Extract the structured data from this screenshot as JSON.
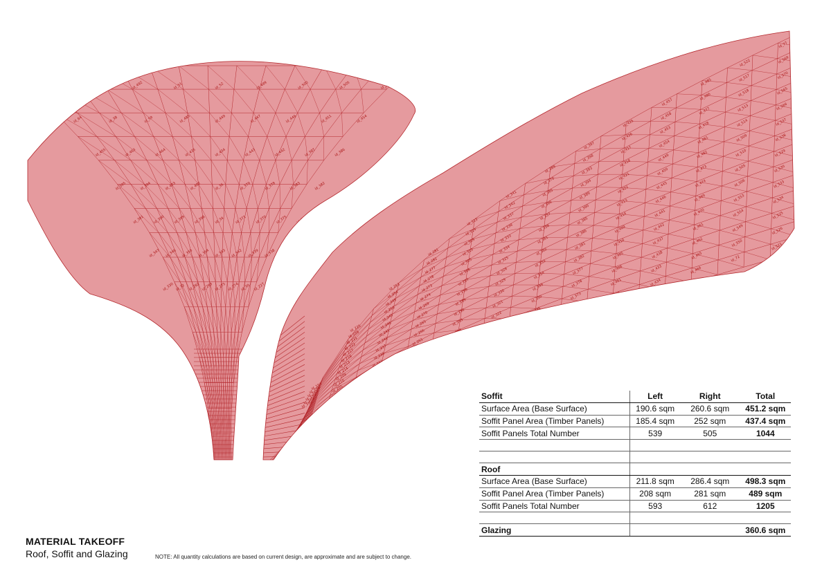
{
  "drawing": {
    "surface_fill": "#e59a9e",
    "line_color": "#b3262b",
    "left_panel_labels": [
      "id_60",
      "id_493",
      "id_492",
      "id_51",
      "id_52",
      "id_499",
      "id_500",
      "id_505",
      "id_506",
      "id_64",
      "id_38",
      "id_59",
      "id_485",
      "id_449",
      "id_447",
      "id_446",
      "id_451",
      "id_454",
      "id_455",
      "id_463",
      "id_464",
      "id_435",
      "id_434",
      "id_443",
      "id_442",
      "id_387",
      "id_386",
      "id_395",
      "id_394",
      "id_403",
      "id_402",
      "id_36",
      "id_379",
      "id_378",
      "id_383",
      "id_382",
      "id_391",
      "id_390",
      "id_399",
      "id_398",
      "id_34",
      "id_371",
      "id_370",
      "id_375",
      "id_374",
      "id_347",
      "id_346",
      "id_355",
      "id_354",
      "id_343",
      "id_342",
      "id_339",
      "id_338",
      "id_331",
      "id_330",
      "id_32",
      "id_282",
      "id_283",
      "id_275",
      "id_274",
      "id_30",
      "id_227",
      "id_226"
    ],
    "right_panel_labels": [
      "id_77",
      "id_569",
      "id_570",
      "id_565",
      "id_566",
      "id_537",
      "id_538",
      "id_529",
      "id_530",
      "id_533",
      "id_534",
      "id_525",
      "id_526",
      "id_521",
      "id_522",
      "id_517",
      "id_518",
      "id_513",
      "id_514",
      "id_509",
      "id_510",
      "id_505",
      "id_506",
      "id_553",
      "id_554",
      "id_549",
      "id_550",
      "id_72",
      "id_485",
      "id_486",
      "id_477",
      "id_478",
      "id_481",
      "id_482",
      "id_473",
      "id_474",
      "id_469",
      "id_470",
      "id_461",
      "id_462",
      "id_465",
      "id_466",
      "id_457",
      "id_458",
      "id_453",
      "id_454",
      "id_449",
      "id_450",
      "id_445",
      "id_446",
      "id_441",
      "id_442",
      "id_437",
      "id_438",
      "id_433",
      "id_434",
      "id_425",
      "id_426",
      "id_417",
      "id_418",
      "id_421",
      "id_422",
      "id_413",
      "id_414",
      "id_409",
      "id_410",
      "id_405",
      "id_406",
      "id_401",
      "id_402",
      "id_397",
      "id_398",
      "id_393",
      "id_394",
      "id_389",
      "id_390",
      "id_385",
      "id_386",
      "id_381",
      "id_382",
      "id_377",
      "id_378",
      "id_373",
      "id_374",
      "id_369",
      "id_370",
      "id_365",
      "id_366",
      "id_357",
      "id_358",
      "id_361",
      "id_362",
      "id_353",
      "id_354",
      "id_349",
      "id_350",
      "id_345",
      "id_346",
      "id_341",
      "id_342",
      "id_337",
      "id_338",
      "id_333",
      "id_334",
      "id_325",
      "id_326",
      "id_329",
      "id_330",
      "id_321",
      "id_322",
      "id_317",
      "id_318",
      "id_313",
      "id_314",
      "id_309",
      "id_310",
      "id_305",
      "id_306",
      "id_297",
      "id_298",
      "id_289",
      "id_290",
      "id_293",
      "id_294",
      "id_285",
      "id_286",
      "id_281",
      "id_282",
      "id_277",
      "id_278",
      "id_273",
      "id_274",
      "id_269",
      "id_270",
      "id_265",
      "id_266",
      "id_261",
      "id_262",
      "id_257",
      "id_258",
      "id_253",
      "id_254",
      "id_249",
      "id_250",
      "id_245",
      "id_246",
      "id_241",
      "id_242",
      "id_237",
      "id_238",
      "id_233",
      "id_234",
      "id_229",
      "id_230",
      "id_225",
      "id_226",
      "id_221",
      "id_222",
      "id_217",
      "id_218",
      "id_213",
      "id_214",
      "id_209",
      "id_210",
      "id_205",
      "id_206",
      "id_201",
      "id_202",
      "id_197",
      "id_198",
      "id_193",
      "id_194",
      "id_189",
      "id_190"
    ]
  },
  "takeoff": {
    "columns": {
      "left": "Left",
      "right": "Right",
      "total": "Total"
    },
    "soffit": {
      "heading": "Soffit",
      "rows": [
        {
          "label": "Surface Area (Base Surface)",
          "left": "190.6 sqm",
          "right": "260.6 sqm",
          "total": "451.2 sqm"
        },
        {
          "label": "Soffit Panel Area (Timber Panels)",
          "left": "185.4 sqm",
          "right": "252 sqm",
          "total": "437.4 sqm"
        },
        {
          "label": "Soffit Panels Total Number",
          "left": "539",
          "right": "505",
          "total": "1044"
        }
      ]
    },
    "roof": {
      "heading": "Roof",
      "rows": [
        {
          "label": "Surface Area (Base Surface)",
          "left": "211.8 sqm",
          "right": "286.4 sqm",
          "total": "498.3 sqm"
        },
        {
          "label": "Soffit Panel Area (Timber Panels)",
          "left": "208 sqm",
          "right": "281 sqm",
          "total": "489 sqm"
        },
        {
          "label": "Soffit Panels Total Number",
          "left": "593",
          "right": "612",
          "total": "1205"
        }
      ]
    },
    "glazing": {
      "heading": "Glazing",
      "total": "360.6 sqm"
    }
  },
  "title": {
    "main": "MATERIAL TAKEOFF",
    "sub": "Roof, Soffit and Glazing"
  },
  "note": "NOTE: All quantity calculations are based on current design, are approximate and are subject to change."
}
